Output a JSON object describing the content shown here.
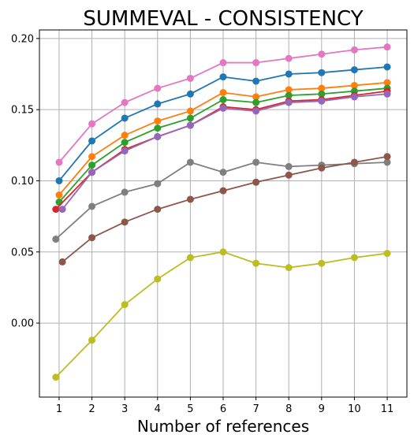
{
  "chart_data": {
    "type": "line",
    "title": "SUMMEVAL - CONSISTENCY",
    "xlabel": "Number of references",
    "ylabel": "",
    "xlim": [
      0.4,
      11.6
    ],
    "ylim": [
      -0.052,
      0.206
    ],
    "x_ticks": [
      1,
      2,
      3,
      4,
      5,
      6,
      7,
      8,
      9,
      10,
      11
    ],
    "y_ticks": [
      0.0,
      0.05,
      0.1,
      0.15,
      0.2
    ],
    "y_tick_labels": [
      "0.00",
      "0.05",
      "0.10",
      "0.15",
      "0.20"
    ],
    "grid": true,
    "legend": "none",
    "series": [
      {
        "color": "#e377c2",
        "x": [
          1,
          2,
          3,
          4,
          5,
          6,
          7,
          8,
          9,
          10,
          11
        ],
        "values": [
          0.113,
          0.14,
          0.155,
          0.165,
          0.172,
          0.183,
          0.183,
          0.186,
          0.189,
          0.192,
          0.194
        ]
      },
      {
        "color": "#1f77b4",
        "x": [
          1,
          2,
          3,
          4,
          5,
          6,
          7,
          8,
          9,
          10,
          11
        ],
        "values": [
          0.1,
          0.128,
          0.144,
          0.154,
          0.161,
          0.173,
          0.17,
          0.175,
          0.176,
          0.178,
          0.18
        ]
      },
      {
        "color": "#ff7f0e",
        "x": [
          1,
          2,
          3,
          4,
          5,
          6,
          7,
          8,
          9,
          10,
          11
        ],
        "values": [
          0.09,
          0.117,
          0.132,
          0.142,
          0.149,
          0.162,
          0.159,
          0.164,
          0.165,
          0.167,
          0.169
        ]
      },
      {
        "color": "#2ca02c",
        "x": [
          1,
          2,
          3,
          4,
          5,
          6,
          7,
          8,
          9,
          10,
          11
        ],
        "values": [
          0.085,
          0.111,
          0.127,
          0.137,
          0.144,
          0.157,
          0.155,
          0.16,
          0.161,
          0.163,
          0.165
        ]
      },
      {
        "color": "#d62728",
        "x": [
          0.9,
          2,
          3,
          4,
          5,
          6,
          7,
          8,
          9,
          10,
          11
        ],
        "values": [
          0.08,
          0.106,
          0.122,
          0.131,
          0.139,
          0.152,
          0.15,
          0.156,
          0.157,
          0.16,
          0.163
        ]
      },
      {
        "color": "#9467bd",
        "x": [
          1.1,
          2,
          3,
          4,
          5,
          6,
          7,
          8,
          9,
          10,
          11
        ],
        "values": [
          0.08,
          0.106,
          0.121,
          0.131,
          0.139,
          0.151,
          0.149,
          0.155,
          0.156,
          0.159,
          0.161
        ]
      },
      {
        "color": "#7f7f7f",
        "x": [
          0.9,
          2,
          3,
          4,
          5,
          6,
          7,
          8,
          9,
          10,
          11
        ],
        "values": [
          0.059,
          0.082,
          0.092,
          0.098,
          0.113,
          0.106,
          0.113,
          0.11,
          0.111,
          0.112,
          0.113
        ]
      },
      {
        "color": "#8c564b",
        "x": [
          1.1,
          2,
          3,
          4,
          5,
          6,
          7,
          8,
          9,
          10,
          11
        ],
        "values": [
          0.043,
          0.06,
          0.071,
          0.08,
          0.087,
          0.093,
          0.099,
          0.104,
          0.109,
          0.113,
          0.117
        ]
      },
      {
        "color": "#bcbd22",
        "x": [
          0.9,
          2,
          3,
          4,
          5,
          6,
          7,
          8,
          9,
          10,
          11
        ],
        "values": [
          -0.038,
          -0.012,
          0.013,
          0.031,
          0.046,
          0.05,
          0.042,
          0.039,
          0.042,
          0.046,
          0.049
        ]
      }
    ]
  }
}
